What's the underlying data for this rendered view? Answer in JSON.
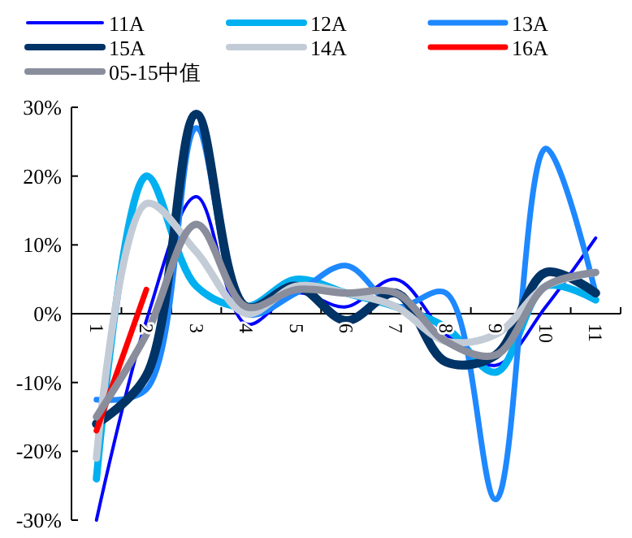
{
  "chart_data": {
    "type": "line",
    "categories": [
      "1",
      "2",
      "3",
      "4",
      "5",
      "6",
      "7",
      "8",
      "9",
      "10",
      "11"
    ],
    "ylim": [
      -30,
      30
    ],
    "yticks": [
      {
        "value": -30,
        "label": "-30%"
      },
      {
        "value": -20,
        "label": "-20%"
      },
      {
        "value": -10,
        "label": "-10%"
      },
      {
        "value": 0,
        "label": "0%"
      },
      {
        "value": 10,
        "label": "10%"
      },
      {
        "value": 20,
        "label": "20%"
      },
      {
        "value": 30,
        "label": "30%"
      }
    ],
    "legend": "top",
    "grid": false,
    "marker": "none",
    "line_style": "solid",
    "series": [
      {
        "name": "11A",
        "color": "#0000ff",
        "values": [
          -30,
          -1,
          17,
          -1.5,
          3,
          1,
          5,
          -3,
          -7.5,
          1,
          11
        ]
      },
      {
        "name": "12A",
        "color": "#00b0f0",
        "values": [
          -24,
          20,
          4,
          1,
          5,
          3,
          1,
          -2,
          -8.5,
          4,
          2
        ]
      },
      {
        "name": "13A",
        "color": "#1e88ff",
        "values": [
          -12.5,
          -11,
          27,
          0,
          3,
          7,
          1,
          3,
          -27,
          24,
          3
        ]
      },
      {
        "name": "15A",
        "color": "#003366",
        "values": [
          -16,
          -9,
          29,
          1,
          4,
          -1,
          3,
          -7,
          -6,
          6,
          3
        ]
      },
      {
        "name": "14A",
        "color": "#c3ccd6",
        "values": [
          -21,
          16,
          9,
          0,
          4,
          3,
          1,
          -4,
          -3,
          4,
          6
        ]
      },
      {
        "name": "16A",
        "color": "#ff0000",
        "values": [
          -17,
          3.5,
          null,
          null,
          null,
          null,
          null,
          null,
          null,
          null,
          null
        ]
      },
      {
        "name": "05-15中值",
        "color": "#8a8d9c",
        "values": [
          -15,
          -3,
          13,
          1,
          3.5,
          3,
          3,
          -4,
          -6,
          4,
          6
        ]
      }
    ]
  }
}
